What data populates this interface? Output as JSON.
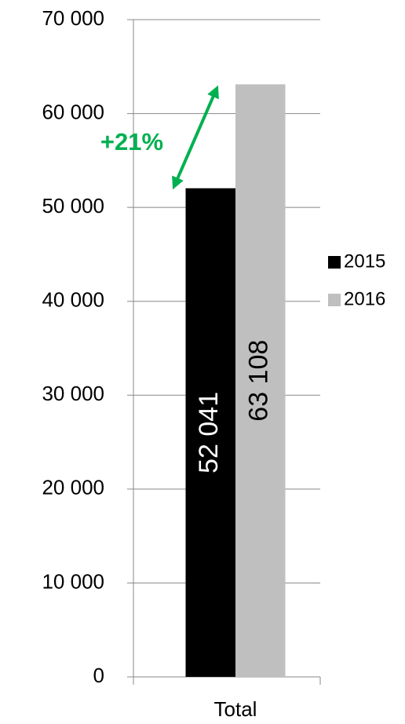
{
  "chart_data": {
    "type": "bar",
    "categories": [
      "Total"
    ],
    "series": [
      {
        "name": "2015",
        "color": "#000000",
        "values": [
          52041
        ],
        "value_labels": [
          "52 041"
        ]
      },
      {
        "name": "2016",
        "color": "#bfbfbf",
        "values": [
          63108
        ],
        "value_labels": [
          "63 108"
        ]
      }
    ],
    "ylim": [
      0,
      70000
    ],
    "yticks": [
      0,
      {
        "value": 10000,
        "label": "10 000"
      },
      {
        "value": 20000,
        "label": "20 000"
      },
      {
        "value": 30000,
        "label": "30 000"
      },
      {
        "value": 40000,
        "label": "40 000"
      },
      {
        "value": 50000,
        "label": "50 000"
      },
      {
        "value": 60000,
        "label": "60 000"
      },
      {
        "value": 70000,
        "label": "70 000"
      }
    ],
    "grid": true,
    "legend": "right",
    "annotation": "+21%",
    "annotation_color": "#00b050"
  }
}
